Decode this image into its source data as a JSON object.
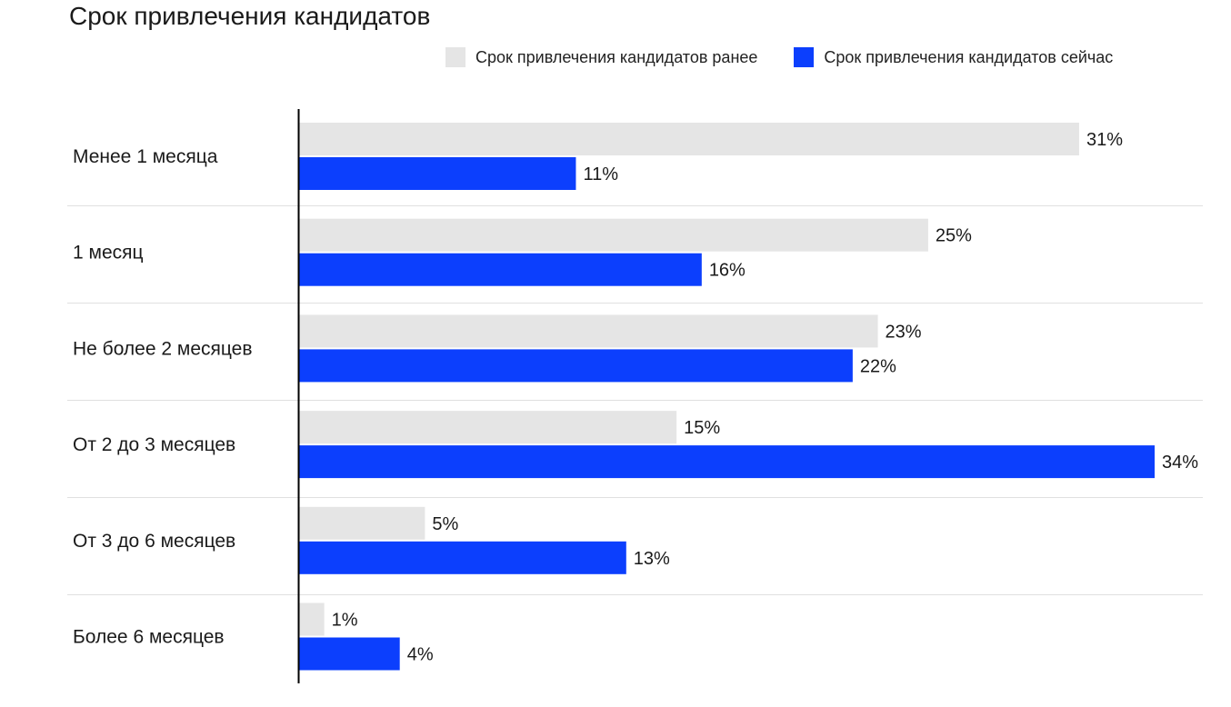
{
  "chart_data": {
    "type": "bar",
    "orientation": "horizontal",
    "title": "Срок привлечения кандидатов",
    "categories": [
      "Менее 1 месяца",
      "1 месяц",
      "Не более 2 месяцев",
      "От 2 до 3 месяцев",
      "От 3 до 6 месяцев",
      "Более 6 месяцев"
    ],
    "series": [
      {
        "name": "Срок привлечения кандидатов ранее",
        "color": "#e5e5e5",
        "values": [
          31,
          25,
          23,
          15,
          5,
          1
        ],
        "labels": [
          "31%",
          "25%",
          "23%",
          "15%",
          "5%",
          "1%"
        ]
      },
      {
        "name": "Срок привлечения кандидатов сейчас",
        "color": "#0c3ffd",
        "values": [
          11,
          16,
          22,
          34,
          13,
          4
        ],
        "labels": [
          "11%",
          "16%",
          "22%",
          "34%",
          "13%",
          "4%"
        ]
      }
    ],
    "unit": "%",
    "xlim": [
      0,
      34
    ],
    "legend_position": "top-right",
    "grid": false
  }
}
